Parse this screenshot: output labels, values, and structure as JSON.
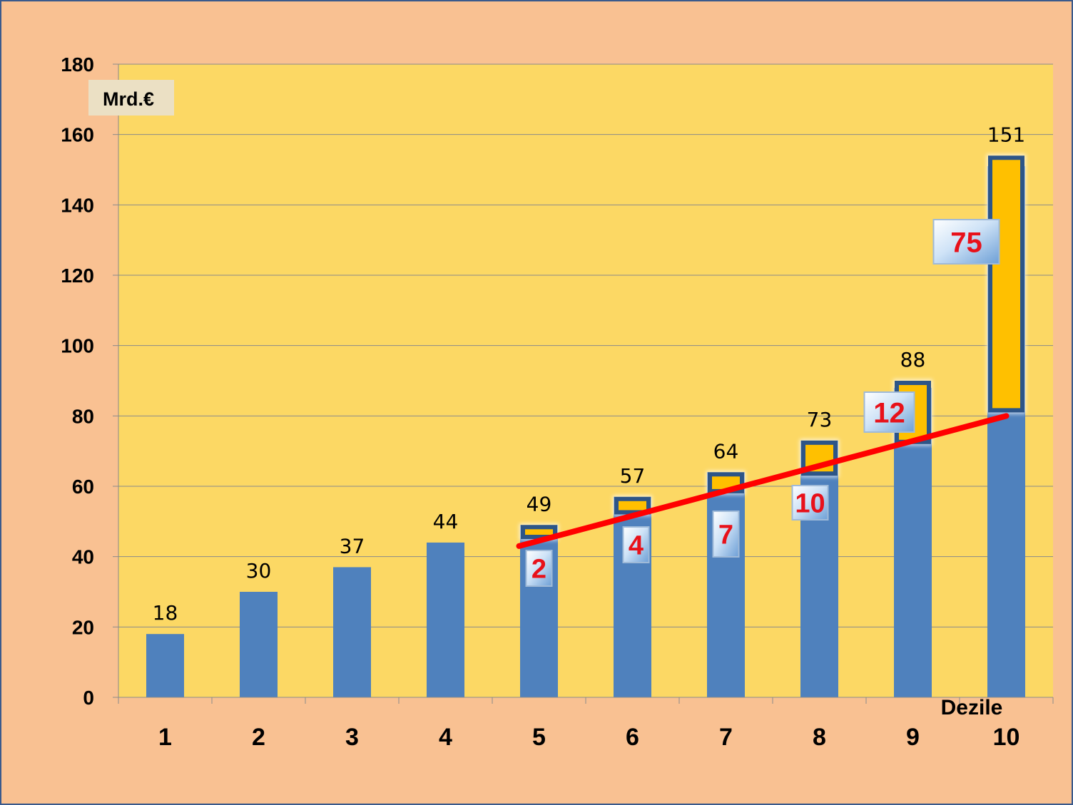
{
  "chart_data": {
    "type": "bar",
    "categories": [
      "1",
      "2",
      "3",
      "4",
      "5",
      "6",
      "7",
      "8",
      "9",
      "10"
    ],
    "values": [
      18,
      30,
      37,
      44,
      49,
      57,
      64,
      73,
      88,
      151
    ],
    "data_labels": [
      "18",
      "30",
      "37",
      "44",
      "49",
      "57",
      "64",
      "73",
      "88",
      "151"
    ],
    "xlabel": "Dezile",
    "unit": "Mrd.€",
    "ylim": [
      0,
      180
    ],
    "yticks": [
      0,
      20,
      40,
      60,
      80,
      100,
      120,
      140,
      160,
      180
    ],
    "grid": true,
    "trend_line": {
      "start": {
        "category": "5",
        "value": 43
      },
      "end": {
        "category": "10",
        "value": 80
      }
    },
    "gaps": [
      {
        "category": "5",
        "from": 45,
        "to": 49,
        "label": "2"
      },
      {
        "category": "6",
        "from": 52,
        "to": 57,
        "label": "4"
      },
      {
        "category": "7",
        "from": 58,
        "to": 64,
        "label": "7"
      },
      {
        "category": "8",
        "from": 63,
        "to": 73,
        "label": "10"
      },
      {
        "category": "9",
        "from": 72,
        "to": 90,
        "label": "12"
      },
      {
        "category": "10",
        "from": 81,
        "to": 154,
        "label": "75"
      }
    ],
    "colors": {
      "background": "#f9c192",
      "plot_area": "#fcd864",
      "bar": "#4f81bd",
      "gap_fill": "#ffc000",
      "gap_border": "#2d5587",
      "trend_line": "#ff0000",
      "gap_label_text": "#e8111a",
      "unit_box": "#ebe0c4"
    }
  }
}
